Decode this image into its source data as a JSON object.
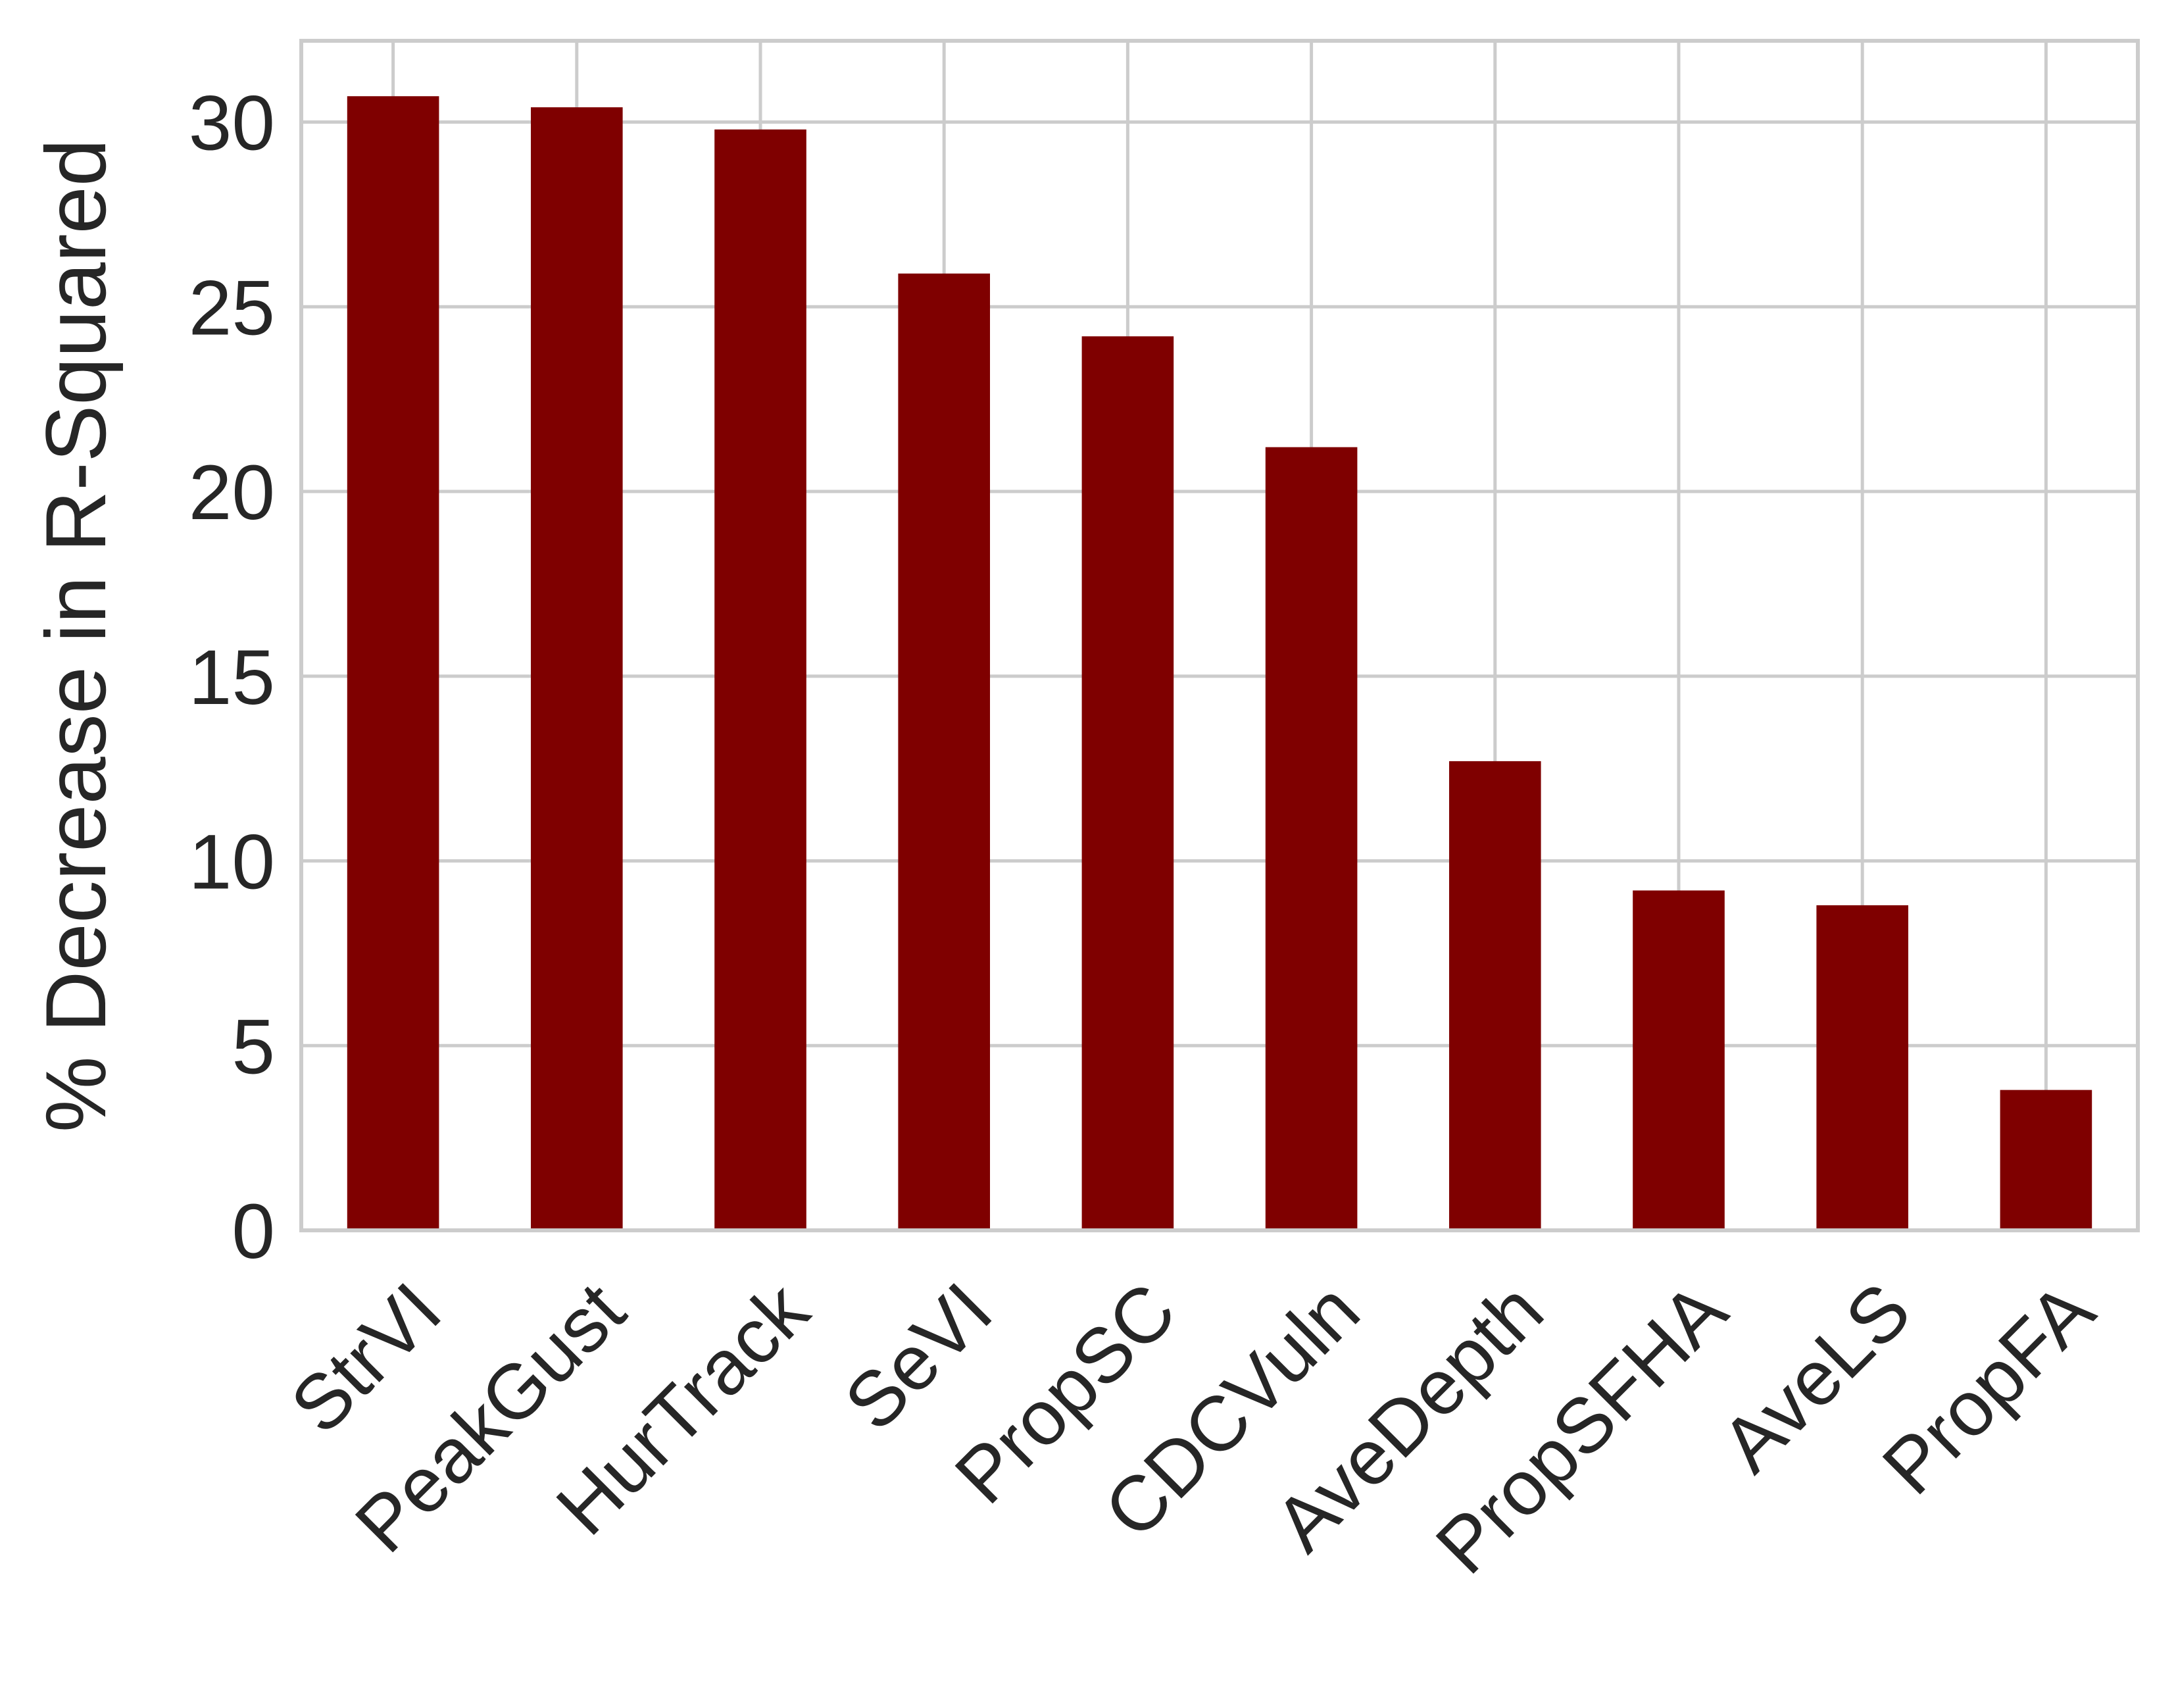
{
  "chart_data": {
    "type": "bar",
    "title": "",
    "xlabel": "",
    "ylabel": "% Decrease in R-Squared",
    "categories": [
      "StrVI",
      "PeakGust",
      "HurTrack",
      "SeVI",
      "PropSC",
      "CDCVuln",
      "AveDepth",
      "PropSFHA",
      "AveLS",
      "PropFA"
    ],
    "values": [
      30.7,
      30.4,
      29.8,
      25.9,
      24.2,
      21.2,
      12.7,
      9.2,
      8.8,
      3.8
    ],
    "ylim": [
      0,
      32.2
    ],
    "yticks": [
      0,
      5,
      10,
      15,
      20,
      25,
      30
    ],
    "grid": true,
    "legend": "none",
    "bar_color": "#7f0000",
    "grid_color": "#cccccc",
    "text_color": "#262626"
  }
}
